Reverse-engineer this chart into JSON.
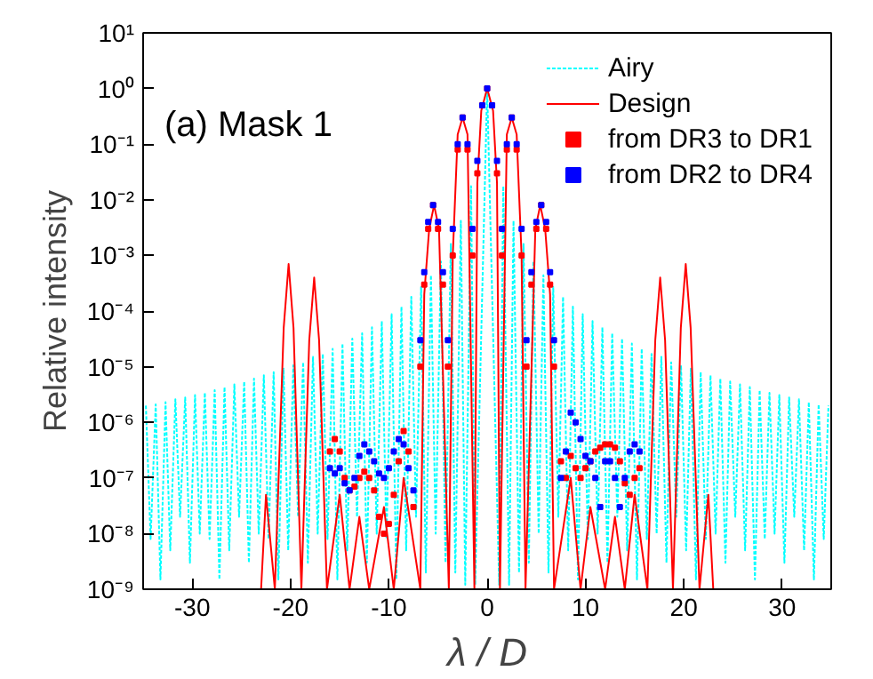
{
  "chart_data": {
    "type": "line",
    "xlabel": "λ / D",
    "ylabel": "Relative intensity",
    "annotations": [
      "(a) Mask 1"
    ],
    "log": "y",
    "legend": "top right",
    "xlim": [
      -35,
      35
    ],
    "xticks": [
      -30,
      -20,
      -10,
      0,
      10,
      20,
      30
    ],
    "ylim": [
      1e-09,
      10
    ],
    "yticks": [
      {
        "value": 1e-09,
        "label": "10⁻⁹"
      },
      {
        "value": 1e-08,
        "label": "10⁻⁸"
      },
      {
        "value": 1e-07,
        "label": "10⁻⁷"
      },
      {
        "value": 1e-06,
        "label": "10⁻⁶"
      },
      {
        "value": 1e-05,
        "label": "10⁻⁵"
      },
      {
        "value": 0.0001,
        "label": "10⁻⁴"
      },
      {
        "value": 0.001,
        "label": "10⁻³"
      },
      {
        "value": 0.01,
        "label": "10⁻²"
      },
      {
        "value": 0.1,
        "label": "10⁻¹"
      },
      {
        "value": 1,
        "label": "10⁰"
      },
      {
        "value": 10,
        "label": "10¹"
      }
    ],
    "series": [
      {
        "name": "Airy",
        "line_style": "dotted",
        "color": "#00ffff",
        "x": [
          -34.72,
          -34.24,
          -33.72,
          -33.24,
          -32.72,
          -32.24,
          -31.72,
          -31.24,
          -30.72,
          -30.24,
          -29.72,
          -29.24,
          -28.72,
          -28.24,
          -27.72,
          -27.24,
          -26.72,
          -26.24,
          -25.72,
          -25.24,
          -24.72,
          -24.24,
          -23.72,
          -23.24,
          -22.72,
          -22.24,
          -21.72,
          -21.24,
          -20.72,
          -20.24,
          -19.72,
          -19.24,
          -18.72,
          -18.24,
          -17.72,
          -17.24,
          -16.72,
          -16.24,
          -15.72,
          -15.24,
          -14.72,
          -14.24,
          -13.72,
          -13.24,
          -12.72,
          -12.24,
          -11.72,
          -11.24,
          -10.72,
          -10.24,
          -9.72,
          -9.24,
          -8.72,
          -8.24,
          -7.72,
          -7.24,
          -6.72,
          -6.24,
          -5.72,
          -5.24,
          -4.71,
          -4.24,
          -3.7,
          -3.24,
          -2.68,
          -2.23,
          -1.64,
          -1.22,
          0,
          1.22,
          1.64,
          2.23,
          2.68,
          3.24,
          3.7,
          4.24,
          4.71,
          5.24,
          5.72,
          6.24,
          6.72,
          7.24,
          7.72,
          8.24,
          8.72,
          9.24,
          9.72,
          10.24,
          10.72,
          11.24,
          11.72,
          12.24,
          12.72,
          13.24,
          13.72,
          14.24,
          14.72,
          15.24,
          15.72,
          16.24,
          16.72,
          17.24,
          17.72,
          18.24,
          18.72,
          19.24,
          19.72,
          20.24,
          20.72,
          21.24,
          21.72,
          22.24,
          22.72,
          23.24,
          23.72,
          24.24,
          24.72,
          25.24,
          25.72,
          26.24,
          26.72,
          27.24,
          27.72,
          28.24,
          28.72,
          29.24,
          29.72,
          30.24,
          30.72,
          31.24,
          31.72,
          32.24,
          32.72,
          33.24,
          33.72,
          34.24,
          34.72
        ],
        "values": [
          2e-06,
          8e-09,
          2.1e-06,
          1.5e-09,
          2.3e-06,
          5e-09,
          2.6e-06,
          2e-08,
          2.8e-06,
          3e-09,
          3.1e-06,
          1e-08,
          3.4e-06,
          8e-09,
          3.8e-06,
          1.5e-09,
          4.3e-06,
          5e-09,
          4.8e-06,
          2e-08,
          5.4e-06,
          3e-09,
          6.1e-06,
          1e-08,
          7e-06,
          8e-09,
          8e-06,
          1.5e-09,
          9.2e-06,
          5e-09,
          1.06e-05,
          2e-08,
          1.2e-05,
          3e-09,
          1.5e-05,
          1e-08,
          1.7e-05,
          8e-09,
          2.1e-05,
          1.5e-09,
          2.6e-05,
          5e-09,
          3.2e-05,
          2e-08,
          4e-05,
          3e-09,
          5.1e-05,
          1e-08,
          6.6e-05,
          8e-09,
          8.8e-05,
          1.5e-09,
          0.00012,
          5e-09,
          0.00018,
          2e-08,
          0.00027,
          2e-09,
          0.00044,
          1e-08,
          0.00078,
          3e-09,
          0.0016,
          2e-09,
          0.0042,
          1.2e-09,
          0.0175,
          1.2e-09,
          1,
          1.2e-09,
          0.0175,
          1.2e-09,
          0.0042,
          2e-09,
          0.0016,
          3e-09,
          0.00078,
          1e-08,
          0.00044,
          2e-09,
          0.00027,
          2e-08,
          0.00018,
          5e-09,
          0.00012,
          1.5e-09,
          8.8e-05,
          8e-09,
          6.6e-05,
          1e-08,
          5.1e-05,
          3e-09,
          4e-05,
          2e-08,
          3.2e-05,
          5e-09,
          2.6e-05,
          1.5e-09,
          2.1e-05,
          8e-09,
          1.7e-05,
          1e-08,
          1.5e-05,
          3e-09,
          1.2e-05,
          2e-08,
          1.06e-05,
          5e-09,
          9.2e-06,
          1.5e-09,
          8e-06,
          8e-09,
          7e-06,
          1e-08,
          6.1e-06,
          3e-09,
          5.4e-06,
          2e-08,
          4.8e-06,
          5e-09,
          4.3e-06,
          1.5e-09,
          3.8e-06,
          8e-09,
          3.4e-06,
          1e-08,
          3.1e-06,
          3e-09,
          2.8e-06,
          2e-08,
          2.6e-06,
          5e-09,
          2.3e-06,
          1.5e-09,
          2.1e-06,
          8e-09,
          2e-06
        ]
      },
      {
        "name": "Design",
        "line_style": "solid",
        "color": "#ff0000",
        "x": [
          -23,
          -22.5,
          -21.6,
          -20.7,
          -20.2,
          -19.7,
          -18.9,
          -18.1,
          -17.6,
          -17.1,
          -16.3,
          -15,
          -14,
          -13,
          -12,
          -10.5,
          -9.5,
          -8.5,
          -6.8,
          -6.4,
          -5.9,
          -5.4,
          -4.9,
          -3.9,
          -3.5,
          -3.0,
          -2.5,
          -2.0,
          -1.3,
          -1.0,
          -0.6,
          0,
          0.6,
          1.0,
          1.3,
          2.0,
          2.5,
          3.0,
          3.5,
          3.9,
          4.9,
          5.4,
          5.9,
          6.4,
          6.8,
          8.5,
          9.5,
          10.5,
          12,
          13,
          14,
          15,
          16.3,
          17.1,
          17.6,
          18.1,
          18.9,
          19.7,
          20.2,
          20.7,
          21.6,
          22.5,
          23
        ],
        "values": [
          1e-09,
          5e-08,
          1e-09,
          5e-05,
          0.0007,
          5e-05,
          1e-09,
          3e-05,
          0.0004,
          3e-05,
          1e-09,
          5e-08,
          1e-09,
          2e-08,
          1e-09,
          3e-08,
          1e-09,
          1e-07,
          1e-09,
          0.0002,
          0.003,
          0.008,
          0.003,
          1e-09,
          0.001,
          0.15,
          0.3,
          0.15,
          1e-09,
          0.02,
          0.4,
          1,
          0.4,
          0.02,
          1e-09,
          0.15,
          0.3,
          0.15,
          0.001,
          1e-09,
          0.003,
          0.008,
          0.003,
          0.0002,
          1e-09,
          1e-07,
          1e-09,
          3e-08,
          1e-09,
          2e-08,
          1e-09,
          5e-08,
          1e-09,
          3e-05,
          0.0004,
          3e-05,
          1e-09,
          5e-05,
          0.0007,
          5e-05,
          1e-09,
          5e-08,
          1e-09
        ]
      },
      {
        "name": "from DR3 to DR1",
        "type": "scatter",
        "marker": "square",
        "color": "#ff0000",
        "x": [
          -16,
          -15.5,
          -15,
          -14.5,
          -14,
          -13.5,
          -13,
          -12.5,
          -12,
          -11.5,
          -11,
          -10.5,
          -10,
          -9.5,
          -9,
          -8.5,
          -8,
          -7.5,
          -6.8,
          -6.4,
          -6,
          -5.5,
          -5,
          -4.5,
          -4,
          -3.5,
          -3,
          -2.5,
          -2,
          -1.5,
          -1,
          -0.5,
          0,
          0.5,
          1,
          1.5,
          2,
          2.5,
          3,
          3.5,
          4,
          4.5,
          5,
          5.5,
          6,
          6.4,
          6.8,
          7.5,
          8,
          8.5,
          9,
          9.5,
          10,
          10.5,
          11,
          11.5,
          12,
          12.5,
          13,
          13.5,
          14,
          14.5,
          15,
          15.5
        ],
        "values": [
          3e-07,
          5e-07,
          3e-07,
          1e-07,
          6e-08,
          7e-08,
          1e-07,
          1.3e-07,
          1e-07,
          6e-08,
          2e-08,
          1e-08,
          1.5e-08,
          5e-08,
          2e-07,
          7e-07,
          3e-07,
          3e-08,
          1e-05,
          0.0003,
          0.003,
          0.008,
          0.003,
          0.0003,
          1e-05,
          0.001,
          0.08,
          0.3,
          0.08,
          0.001,
          0.03,
          0.5,
          1,
          0.5,
          0.03,
          0.001,
          0.08,
          0.3,
          0.08,
          0.001,
          1e-05,
          0.0003,
          0.003,
          0.008,
          0.003,
          0.0003,
          1e-05,
          2e-07,
          1e-07,
          2.5e-07,
          1.5e-07,
          1e-07,
          1.5e-07,
          2e-07,
          3e-07,
          3.5e-07,
          4e-07,
          4e-07,
          3.5e-07,
          2e-07,
          8e-08,
          5e-08,
          1e-07,
          1.5e-07
        ]
      },
      {
        "name": "from DR2 to DR4",
        "type": "scatter",
        "marker": "square",
        "color": "#0000ff",
        "x": [
          -16,
          -15.5,
          -15,
          -14.5,
          -14,
          -13.5,
          -13,
          -12.5,
          -12,
          -11.5,
          -11,
          -10.5,
          -10,
          -9.5,
          -9,
          -8.5,
          -8,
          -7.5,
          -6.8,
          -6.4,
          -6,
          -5.5,
          -5,
          -4.5,
          -4,
          -3.5,
          -3,
          -2.5,
          -2,
          -1.5,
          -1,
          -0.5,
          0,
          0.5,
          1,
          1.5,
          2,
          2.5,
          3,
          3.5,
          4,
          4.5,
          5,
          5.5,
          6,
          6.4,
          6.8,
          7.5,
          8,
          8.5,
          9,
          9.5,
          10,
          10.5,
          11,
          11.5,
          12,
          12.5,
          13,
          13.5,
          14,
          14.5,
          15,
          15.5
        ],
        "values": [
          1.5e-07,
          1.2e-07,
          1.5e-07,
          8e-08,
          6e-08,
          1e-07,
          2.5e-07,
          4e-07,
          3e-07,
          2e-07,
          1.2e-07,
          1e-07,
          1.5e-07,
          3e-07,
          5e-07,
          4e-07,
          1.5e-07,
          6e-08,
          3e-05,
          0.0005,
          0.004,
          0.008,
          0.004,
          0.0005,
          3e-05,
          0.003,
          0.1,
          0.3,
          0.1,
          0.003,
          0.05,
          0.5,
          1,
          0.5,
          0.05,
          0.003,
          0.1,
          0.3,
          0.1,
          0.003,
          3e-05,
          0.0005,
          0.004,
          0.008,
          0.004,
          0.0005,
          3e-05,
          1e-07,
          3e-07,
          1.5e-06,
          1e-06,
          5e-07,
          2.5e-07,
          2e-07,
          1e-07,
          3e-08,
          2e-07,
          2e-07,
          1e-07,
          3e-08,
          1e-07,
          3e-07,
          4e-07,
          3e-07
        ]
      }
    ]
  }
}
